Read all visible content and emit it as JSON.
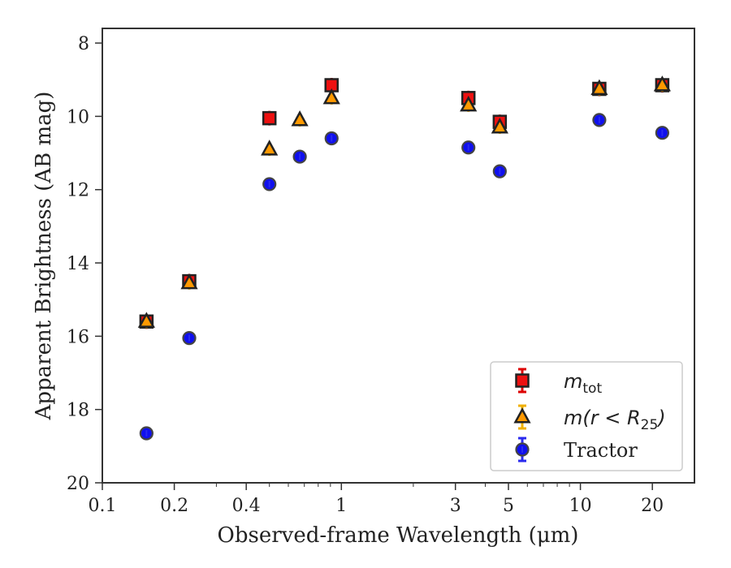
{
  "chart_data": {
    "type": "scatter",
    "title": "",
    "xlabel": "Observed-frame Wavelength (μm)",
    "ylabel": "Apparent Brightness (AB mag)",
    "xscale": "log",
    "xlim": [
      0.1,
      30
    ],
    "ylim": [
      20,
      7.6
    ],
    "y_inverted": true,
    "x_ticks": [
      0.1,
      0.2,
      0.4,
      1,
      3,
      5,
      10,
      20
    ],
    "x_tick_labels": [
      "0.1",
      "0.2",
      "0.4",
      "1",
      "3",
      "5",
      "10",
      "20"
    ],
    "y_ticks": [
      8,
      10,
      12,
      14,
      16,
      18,
      20
    ],
    "y_tick_labels": [
      "8",
      "10",
      "12",
      "14",
      "16",
      "18",
      "20"
    ],
    "grid": false,
    "legend_position": "lower-right",
    "series": [
      {
        "name": "m_tot",
        "legend_main": "m",
        "legend_sub": "tot",
        "marker": "square",
        "face_color": "#ee1111",
        "edge_color": "#222222",
        "errorbar_color": "#dd0000",
        "x": [
          0.153,
          0.231,
          0.5,
          0.91,
          3.4,
          4.6,
          12.0,
          22.0
        ],
        "y": [
          15.6,
          14.5,
          10.05,
          9.15,
          9.5,
          10.15,
          9.25,
          9.15
        ]
      },
      {
        "name": "m(r < R25)",
        "legend_main": "m(r < R",
        "legend_sub": "25",
        "legend_end": ")",
        "marker": "triangle",
        "face_color": "#ff9900",
        "edge_color": "#222222",
        "errorbar_color": "#f0b000",
        "x": [
          0.153,
          0.231,
          0.5,
          0.67,
          0.91,
          3.4,
          4.6,
          12.0,
          22.0
        ],
        "y": [
          15.6,
          14.55,
          10.9,
          10.1,
          9.5,
          9.7,
          10.3,
          9.25,
          9.15
        ]
      },
      {
        "name": "Tractor",
        "marker": "circle",
        "face_color": "#1010ee",
        "edge_color": "#444444",
        "errorbar_color": "#2a2aee",
        "x": [
          0.153,
          0.231,
          0.5,
          0.67,
          0.91,
          3.4,
          4.6,
          12.0,
          22.0
        ],
        "y": [
          18.65,
          16.05,
          11.85,
          11.1,
          10.6,
          10.85,
          11.5,
          10.1,
          10.45
        ]
      }
    ]
  }
}
